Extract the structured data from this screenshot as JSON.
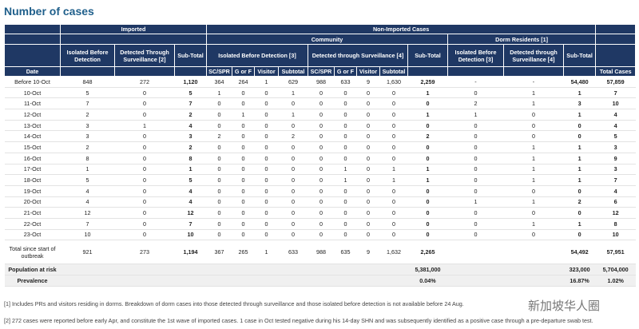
{
  "title": "Number of cases",
  "header": {
    "imported": "Imported",
    "non_imported": "Non-Imported Cases",
    "community": "Community",
    "dorm": "Dorm Residents [1]",
    "imp_ibd": "Isolated Before Detection",
    "imp_dts": "Detected Through Surveillance [2]",
    "imp_sub": "Sub-Total",
    "c_ibd": "Isolated Before Detection [3]",
    "c_dts": "Detected through Surveillance [4]",
    "c_sub": "Sub-Total",
    "d_ibd": "Isolated Before Detection [3]",
    "d_dts": "Detected through Surveillance [4]",
    "d_sub": "Sub-Total",
    "date": "Date",
    "sub_cols": [
      "SC/SPR",
      "G or F",
      "Visitor",
      "Subtotal",
      "SC/SPR",
      "G or F",
      "Visitor",
      "Subtotal"
    ],
    "total": "Total Cases"
  },
  "table": {
    "rows": [
      [
        "Before 10-Oct",
        "848",
        "272",
        "1,120",
        "364",
        "264",
        "1",
        "629",
        "988",
        "633",
        "9",
        "1,630",
        "2,259",
        "-",
        "-",
        "54,480",
        "57,859"
      ],
      [
        "10-Oct",
        "5",
        "0",
        "5",
        "1",
        "0",
        "0",
        "1",
        "0",
        "0",
        "0",
        "0",
        "1",
        "0",
        "1",
        "1",
        "7"
      ],
      [
        "11-Oct",
        "7",
        "0",
        "7",
        "0",
        "0",
        "0",
        "0",
        "0",
        "0",
        "0",
        "0",
        "0",
        "2",
        "1",
        "3",
        "10"
      ],
      [
        "12-Oct",
        "2",
        "0",
        "2",
        "0",
        "1",
        "0",
        "1",
        "0",
        "0",
        "0",
        "0",
        "1",
        "1",
        "0",
        "1",
        "4"
      ],
      [
        "13-Oct",
        "3",
        "1",
        "4",
        "0",
        "0",
        "0",
        "0",
        "0",
        "0",
        "0",
        "0",
        "0",
        "0",
        "0",
        "0",
        "4"
      ],
      [
        "14-Oct",
        "3",
        "0",
        "3",
        "2",
        "0",
        "0",
        "2",
        "0",
        "0",
        "0",
        "0",
        "2",
        "0",
        "0",
        "0",
        "5"
      ],
      [
        "15-Oct",
        "2",
        "0",
        "2",
        "0",
        "0",
        "0",
        "0",
        "0",
        "0",
        "0",
        "0",
        "0",
        "0",
        "1",
        "1",
        "3"
      ],
      [
        "16-Oct",
        "8",
        "0",
        "8",
        "0",
        "0",
        "0",
        "0",
        "0",
        "0",
        "0",
        "0",
        "0",
        "0",
        "1",
        "1",
        "9"
      ],
      [
        "17-Oct",
        "1",
        "0",
        "1",
        "0",
        "0",
        "0",
        "0",
        "0",
        "1",
        "0",
        "1",
        "1",
        "0",
        "1",
        "1",
        "3"
      ],
      [
        "18-Oct",
        "5",
        "0",
        "5",
        "0",
        "0",
        "0",
        "0",
        "0",
        "1",
        "0",
        "1",
        "1",
        "0",
        "1",
        "1",
        "7"
      ],
      [
        "19-Oct",
        "4",
        "0",
        "4",
        "0",
        "0",
        "0",
        "0",
        "0",
        "0",
        "0",
        "0",
        "0",
        "0",
        "0",
        "0",
        "4"
      ],
      [
        "20-Oct",
        "4",
        "0",
        "4",
        "0",
        "0",
        "0",
        "0",
        "0",
        "0",
        "0",
        "0",
        "0",
        "1",
        "1",
        "2",
        "6"
      ],
      [
        "21-Oct",
        "12",
        "0",
        "12",
        "0",
        "0",
        "0",
        "0",
        "0",
        "0",
        "0",
        "0",
        "0",
        "0",
        "0",
        "0",
        "12"
      ],
      [
        "22-Oct",
        "7",
        "0",
        "7",
        "0",
        "0",
        "0",
        "0",
        "0",
        "0",
        "0",
        "0",
        "0",
        "0",
        "1",
        "1",
        "8"
      ],
      [
        "23-Oct",
        "10",
        "0",
        "10",
        "0",
        "0",
        "0",
        "0",
        "0",
        "0",
        "0",
        "0",
        "0",
        "0",
        "0",
        "0",
        "10"
      ],
      [
        "Total since start of outbreak",
        "921",
        "273",
        "1,194",
        "367",
        "265",
        "1",
        "633",
        "988",
        "635",
        "9",
        "1,632",
        "2,265",
        null,
        null,
        "54,492",
        "57,951"
      ],
      [
        "Population at risk",
        null,
        null,
        null,
        null,
        null,
        null,
        null,
        null,
        null,
        null,
        null,
        "5,381,000",
        null,
        null,
        "323,000",
        "5,704,000"
      ],
      [
        "Prevalence",
        null,
        null,
        null,
        null,
        null,
        null,
        null,
        null,
        null,
        null,
        null,
        "0.04%",
        null,
        null,
        "16.87%",
        "1.02%"
      ]
    ]
  },
  "footnotes": [
    "[1] Includes PRs and visitors residing in dorms. Breakdown of dorm cases into those detected through surveillance and those isolated before detection is not available before 24 Aug.",
    "[2] 272 cases were reported before early Apr, and constitute the 1st wave of imported cases. 1 case in Oct tested negative during his 14-day SHN and was subsequently identified as a positive case through a pre-departure swab test."
  ],
  "watermark": "新加坡华人圈"
}
